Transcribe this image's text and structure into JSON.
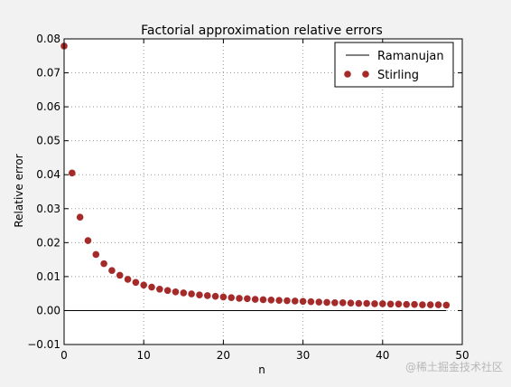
{
  "chart_data": {
    "type": "scatter",
    "title": "Factorial approximation relative errors",
    "xlabel": "n",
    "ylabel": "Relative error",
    "xlim": [
      0,
      50
    ],
    "ylim": [
      -0.01,
      0.08
    ],
    "xticks": [
      0,
      10,
      20,
      30,
      40,
      50
    ],
    "xtick_labels": [
      "0",
      "10",
      "20",
      "30",
      "40",
      "50"
    ],
    "yticks": [
      -0.01,
      0.0,
      0.01,
      0.02,
      0.03,
      0.04,
      0.05,
      0.06,
      0.07,
      0.08
    ],
    "ytick_labels": [
      "−0.01",
      "0.00",
      "0.01",
      "0.02",
      "0.03",
      "0.04",
      "0.05",
      "0.06",
      "0.07",
      "0.08"
    ],
    "grid": true,
    "legend_position": "top-right",
    "series": [
      {
        "name": "Ramanujan",
        "style": "line",
        "color": "#000000",
        "x": [
          0,
          48
        ],
        "y": [
          0.0,
          0.0
        ]
      },
      {
        "name": "Stirling",
        "style": "markers",
        "color": "#a52a2a",
        "x": [
          0,
          1,
          2,
          3,
          4,
          5,
          6,
          7,
          8,
          9,
          10,
          11,
          12,
          13,
          14,
          15,
          16,
          17,
          18,
          19,
          20,
          21,
          22,
          23,
          24,
          25,
          26,
          27,
          28,
          29,
          30,
          31,
          32,
          33,
          34,
          35,
          36,
          37,
          38,
          39,
          40,
          41,
          42,
          43,
          44,
          45,
          46,
          47,
          48
        ],
        "y": [
          0.0779,
          0.0405,
          0.0275,
          0.0206,
          0.0165,
          0.0138,
          0.0118,
          0.0104,
          0.0092,
          0.0083,
          0.0075,
          0.0069,
          0.0063,
          0.0059,
          0.0055,
          0.0052,
          0.0049,
          0.0046,
          0.0044,
          0.0042,
          0.004,
          0.0038,
          0.0036,
          0.0035,
          0.0033,
          0.0032,
          0.0031,
          0.003,
          0.0029,
          0.0028,
          0.0027,
          0.0026,
          0.0025,
          0.0024,
          0.0023,
          0.0023,
          0.0022,
          0.0021,
          0.0021,
          0.002,
          0.002,
          0.0019,
          0.0019,
          0.0018,
          0.0018,
          0.0017,
          0.0017,
          0.0017,
          0.0016
        ]
      }
    ]
  },
  "watermark": "@稀土掘金技术社区"
}
